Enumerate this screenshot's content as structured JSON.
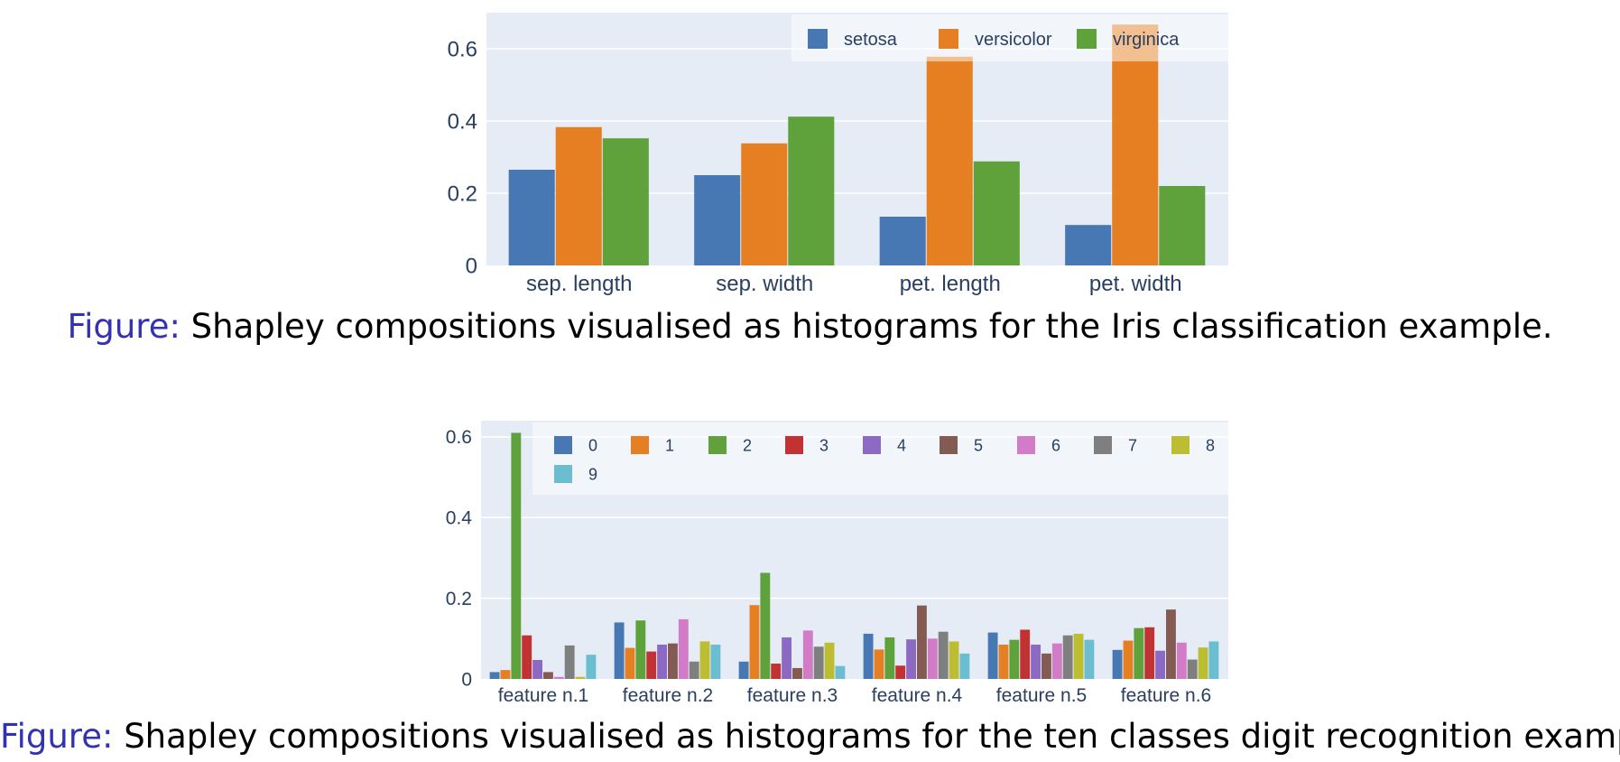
{
  "chart_data": [
    {
      "type": "bar",
      "categories": [
        "sep. length",
        "sep. width",
        "pet. length",
        "pet. width"
      ],
      "series": [
        {
          "name": "setosa",
          "values": [
            0.265,
            0.25,
            0.135,
            0.112
          ]
        },
        {
          "name": "versicolor",
          "values": [
            0.383,
            0.338,
            0.578,
            0.667
          ]
        },
        {
          "name": "virginica",
          "values": [
            0.352,
            0.412,
            0.288,
            0.22
          ]
        }
      ],
      "colors": [
        "#4878b4",
        "#e57f22",
        "#5fa13b"
      ],
      "ylim": [
        0,
        0.7
      ],
      "yticks": [
        0,
        0.2,
        0.4,
        0.6
      ],
      "ytick_labels": [
        "0",
        "0.2",
        "0.4",
        "0.6"
      ],
      "grid": true,
      "legend_position": "top-right",
      "xlabel": "",
      "ylabel": ""
    },
    {
      "type": "bar",
      "categories": [
        "feature n.1",
        "feature n.2",
        "feature n.3",
        "feature n.4",
        "feature n.5",
        "feature n.6"
      ],
      "series": [
        {
          "name": "0",
          "values": [
            0.017,
            0.14,
            0.043,
            0.112,
            0.115,
            0.072
          ]
        },
        {
          "name": "1",
          "values": [
            0.022,
            0.077,
            0.183,
            0.073,
            0.085,
            0.095
          ]
        },
        {
          "name": "2",
          "values": [
            0.61,
            0.145,
            0.263,
            0.103,
            0.097,
            0.126
          ]
        },
        {
          "name": "3",
          "values": [
            0.108,
            0.068,
            0.038,
            0.033,
            0.122,
            0.128
          ]
        },
        {
          "name": "4",
          "values": [
            0.047,
            0.085,
            0.103,
            0.098,
            0.085,
            0.07
          ]
        },
        {
          "name": "5",
          "values": [
            0.017,
            0.088,
            0.027,
            0.182,
            0.063,
            0.172
          ]
        },
        {
          "name": "6",
          "values": [
            0.005,
            0.148,
            0.12,
            0.1,
            0.088,
            0.09
          ]
        },
        {
          "name": "7",
          "values": [
            0.083,
            0.043,
            0.08,
            0.117,
            0.108,
            0.048
          ]
        },
        {
          "name": "8",
          "values": [
            0.005,
            0.093,
            0.09,
            0.093,
            0.112,
            0.078
          ]
        },
        {
          "name": "9",
          "values": [
            0.06,
            0.085,
            0.032,
            0.063,
            0.097,
            0.093
          ]
        }
      ],
      "colors": [
        "#4878b4",
        "#e57f22",
        "#5fa13b",
        "#c33232",
        "#8c6ac4",
        "#845b53",
        "#d27bc6",
        "#7f7f7f",
        "#bcbd32",
        "#6bbdd0"
      ],
      "ylim": [
        0,
        0.64
      ],
      "yticks": [
        0,
        0.2,
        0.4,
        0.6
      ],
      "ytick_labels": [
        "0",
        "0.2",
        "0.4",
        "0.6"
      ],
      "grid": true,
      "legend_position": "top-right",
      "xlabel": "",
      "ylabel": ""
    }
  ],
  "captions": [
    {
      "label": "Figure:",
      "text": " Shapley compositions visualised as histograms for the Iris classification example."
    },
    {
      "label": "Figure:",
      "text": " Shapley compositions visualised as histograms for the ten classes digit recognition example."
    }
  ]
}
